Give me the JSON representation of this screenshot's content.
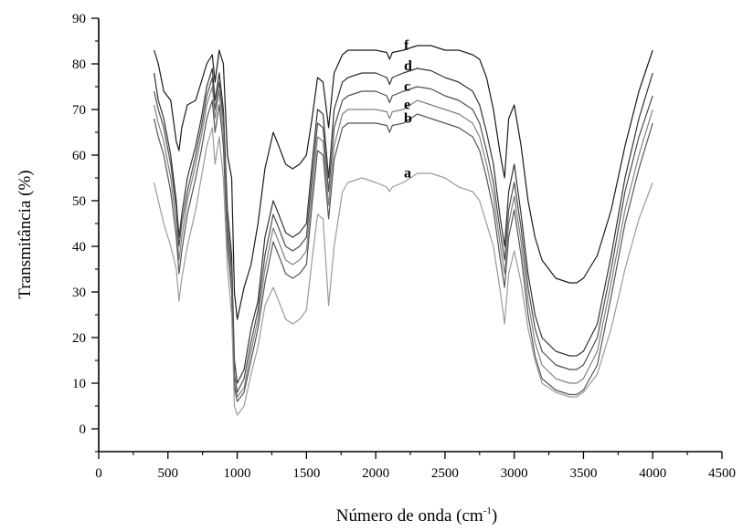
{
  "chart_data": {
    "type": "line",
    "title": "",
    "xlabel": "Número de onda (cm",
    "xlabel_sup": "-1",
    "xlabel_end": ")",
    "ylabel": "Transmitância (%)",
    "xlim": [
      0,
      4500
    ],
    "ylim": [
      -5,
      90
    ],
    "xticks": [
      0,
      500,
      1000,
      1500,
      2000,
      2500,
      3000,
      3500,
      4000,
      4500
    ],
    "xtick_labels": [
      "0",
      "500",
      "1000",
      "1500",
      "2000",
      "2500",
      "3000",
      "3500",
      "4000",
      "4500"
    ],
    "yticks": [
      0,
      10,
      20,
      30,
      40,
      50,
      60,
      70,
      80,
      90
    ],
    "ytick_labels": [
      "0",
      "10",
      "20",
      "30",
      "40",
      "50",
      "60",
      "70",
      "80",
      "90"
    ],
    "grid": false,
    "legend": "none (curves labelled inline)",
    "series": [
      {
        "name": "f",
        "color": "#1a1a1a",
        "label_at": [
          2105,
          82.5
        ],
        "x": [
          400,
          430,
          470,
          520,
          560,
          580,
          600,
          640,
          700,
          740,
          780,
          820,
          840,
          870,
          900,
          930,
          960,
          980,
          1000,
          1050,
          1100,
          1150,
          1200,
          1260,
          1300,
          1350,
          1400,
          1450,
          1500,
          1540,
          1580,
          1620,
          1660,
          1700,
          1760,
          1800,
          1900,
          2000,
          2080,
          2100,
          2120,
          2200,
          2300,
          2400,
          2500,
          2600,
          2700,
          2750,
          2800,
          2850,
          2900,
          2930,
          2960,
          3000,
          3050,
          3100,
          3150,
          3200,
          3300,
          3400,
          3450,
          3500,
          3600,
          3700,
          3800,
          3900,
          4000
        ],
        "y": [
          83,
          80,
          74,
          72,
          63,
          61,
          66,
          71,
          72,
          76,
          80,
          82,
          76,
          83,
          80,
          60,
          55,
          30,
          24,
          31,
          36,
          45,
          57,
          65,
          62,
          58,
          57,
          58,
          60,
          68,
          77,
          76,
          66,
          78,
          82,
          83,
          83,
          83,
          82.5,
          81,
          82.5,
          83,
          84,
          84,
          83,
          83,
          82,
          81,
          77,
          70,
          60,
          55,
          68,
          71,
          62,
          50,
          42,
          37,
          33,
          32,
          32,
          33,
          38,
          48,
          62,
          74,
          83
        ]
      },
      {
        "name": "d",
        "color": "#333333",
        "label_at": [
          2105,
          78
        ],
        "x": [
          400,
          430,
          470,
          520,
          560,
          580,
          600,
          640,
          700,
          740,
          780,
          820,
          840,
          870,
          900,
          930,
          960,
          980,
          1000,
          1050,
          1100,
          1150,
          1200,
          1260,
          1300,
          1350,
          1400,
          1450,
          1500,
          1540,
          1580,
          1620,
          1660,
          1700,
          1760,
          1800,
          1900,
          2000,
          2080,
          2100,
          2120,
          2200,
          2300,
          2400,
          2500,
          2600,
          2700,
          2750,
          2800,
          2850,
          2900,
          2930,
          2960,
          3000,
          3050,
          3100,
          3150,
          3200,
          3300,
          3400,
          3450,
          3500,
          3600,
          3700,
          3800,
          3900,
          4000
        ],
        "y": [
          78,
          72,
          68,
          60,
          50,
          42,
          47,
          55,
          62,
          68,
          75,
          79,
          72,
          78,
          70,
          48,
          38,
          15,
          10,
          13,
          22,
          28,
          42,
          50,
          47,
          43,
          42,
          43,
          45,
          58,
          70,
          69,
          55,
          70,
          76,
          77,
          78,
          78,
          77,
          75.5,
          77,
          78,
          79,
          78.5,
          77,
          76,
          74,
          71,
          65,
          58,
          46,
          40,
          52,
          58,
          47,
          34,
          25,
          20,
          17,
          16,
          16,
          17,
          23,
          38,
          55,
          68,
          78
        ]
      },
      {
        "name": "c",
        "color": "#4d4d4d",
        "label_at": [
          2105,
          73.5
        ],
        "x": [
          400,
          430,
          470,
          520,
          560,
          580,
          600,
          640,
          700,
          740,
          780,
          820,
          840,
          870,
          900,
          930,
          960,
          980,
          1000,
          1050,
          1100,
          1150,
          1200,
          1260,
          1300,
          1350,
          1400,
          1450,
          1500,
          1540,
          1580,
          1620,
          1660,
          1700,
          1760,
          1800,
          1900,
          2000,
          2080,
          2100,
          2120,
          2200,
          2300,
          2400,
          2500,
          2600,
          2700,
          2750,
          2800,
          2850,
          2900,
          2930,
          2960,
          3000,
          3050,
          3100,
          3150,
          3200,
          3300,
          3400,
          3450,
          3500,
          3600,
          3700,
          3800,
          3900,
          4000
        ],
        "y": [
          74,
          70,
          66,
          58,
          48,
          40,
          45,
          52,
          60,
          66,
          73,
          77,
          70,
          76,
          68,
          45,
          35,
          12,
          8,
          11,
          19,
          26,
          38,
          47,
          44,
          40,
          39,
          40,
          42,
          55,
          67,
          66,
          52,
          66,
          72,
          73,
          74,
          74,
          73,
          71.5,
          73,
          74,
          75,
          74.5,
          73,
          72,
          70,
          67,
          61,
          54,
          43,
          37,
          48,
          54,
          44,
          31,
          22,
          17,
          14,
          13,
          13,
          14,
          20,
          35,
          52,
          64,
          73
        ]
      },
      {
        "name": "e",
        "color": "#808080",
        "label_at": [
          2105,
          69.5
        ],
        "x": [
          400,
          430,
          470,
          520,
          560,
          580,
          600,
          640,
          700,
          740,
          780,
          820,
          840,
          870,
          900,
          930,
          960,
          980,
          1000,
          1050,
          1100,
          1150,
          1200,
          1260,
          1300,
          1350,
          1400,
          1450,
          1500,
          1540,
          1580,
          1620,
          1660,
          1700,
          1760,
          1800,
          1900,
          2000,
          2080,
          2100,
          2120,
          2200,
          2300,
          2400,
          2500,
          2600,
          2700,
          2750,
          2800,
          2850,
          2900,
          2930,
          2960,
          3000,
          3050,
          3100,
          3150,
          3200,
          3300,
          3400,
          3450,
          3500,
          3600,
          3700,
          3800,
          3900,
          4000
        ],
        "y": [
          71,
          67,
          63,
          55,
          45,
          37,
          42,
          50,
          58,
          64,
          71,
          75,
          68,
          74,
          65,
          43,
          32,
          10,
          7,
          9,
          17,
          24,
          35,
          44,
          41,
          37,
          36,
          37,
          39,
          52,
          64,
          63,
          49,
          62,
          69,
          70,
          70,
          70,
          69.5,
          68,
          69.5,
          70,
          72,
          71,
          70,
          69,
          67,
          64,
          58,
          51,
          40,
          34,
          45,
          51,
          41,
          28,
          19,
          14,
          11,
          10,
          10,
          11,
          17,
          32,
          48,
          60,
          70
        ]
      },
      {
        "name": "b",
        "color": "#555555",
        "label_at": [
          2105,
          66.5
        ],
        "x": [
          400,
          430,
          470,
          520,
          560,
          580,
          600,
          640,
          700,
          740,
          780,
          820,
          840,
          870,
          900,
          930,
          960,
          980,
          1000,
          1050,
          1100,
          1150,
          1200,
          1260,
          1300,
          1350,
          1400,
          1450,
          1500,
          1540,
          1580,
          1620,
          1660,
          1700,
          1760,
          1800,
          1900,
          2000,
          2080,
          2100,
          2120,
          2200,
          2300,
          2400,
          2500,
          2600,
          2700,
          2750,
          2800,
          2850,
          2900,
          2930,
          2960,
          3000,
          3050,
          3100,
          3150,
          3200,
          3300,
          3400,
          3450,
          3500,
          3600,
          3700,
          3800,
          3900,
          4000
        ],
        "y": [
          68,
          64,
          60,
          52,
          42,
          34,
          39,
          47,
          55,
          61,
          68,
          72,
          65,
          71,
          62,
          40,
          30,
          9,
          6,
          8,
          15,
          22,
          32,
          41,
          38,
          34,
          33,
          34,
          36,
          49,
          61,
          60,
          46,
          59,
          66,
          67,
          67,
          67,
          66.5,
          65,
          66.5,
          67,
          69,
          68,
          67,
          66,
          64,
          61,
          55,
          48,
          37,
          31,
          42,
          48,
          38,
          25,
          16,
          11,
          8.5,
          7.5,
          7.5,
          8.5,
          14,
          29,
          45,
          57,
          67
        ]
      },
      {
        "name": "a",
        "color": "#9a9a9a",
        "label_at": [
          2105,
          54.5
        ],
        "x": [
          400,
          430,
          470,
          520,
          560,
          580,
          600,
          640,
          700,
          740,
          780,
          820,
          840,
          870,
          900,
          930,
          960,
          980,
          1000,
          1050,
          1100,
          1150,
          1200,
          1260,
          1300,
          1350,
          1400,
          1450,
          1500,
          1540,
          1580,
          1620,
          1660,
          1700,
          1760,
          1800,
          1900,
          2000,
          2080,
          2100,
          2120,
          2200,
          2300,
          2400,
          2500,
          2600,
          2700,
          2750,
          2800,
          2850,
          2900,
          2930,
          2960,
          3000,
          3050,
          3100,
          3150,
          3200,
          3300,
          3400,
          3450,
          3500,
          3600,
          3700,
          3800,
          3900,
          4000
        ],
        "y": [
          54,
          50,
          45,
          40,
          35,
          28,
          33,
          40,
          48,
          55,
          62,
          66,
          58,
          64,
          55,
          35,
          25,
          5,
          3,
          5,
          12,
          18,
          27,
          31,
          28,
          24,
          23,
          24,
          26,
          37,
          47,
          46,
          27,
          40,
          52,
          54,
          55,
          54,
          53,
          52,
          53,
          54,
          56,
          56,
          55,
          53,
          52,
          50,
          45,
          40,
          30,
          23,
          34,
          39,
          32,
          22,
          15,
          10,
          8,
          7,
          7,
          8,
          12,
          22,
          35,
          46,
          54
        ]
      }
    ]
  }
}
